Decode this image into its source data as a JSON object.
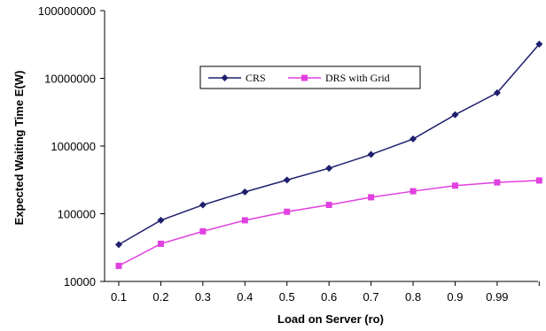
{
  "chart_data": {
    "type": "line",
    "title": "",
    "xlabel": "Load on Server (ro)",
    "ylabel": "Expected Waiting Time E(W)",
    "yscale": "log",
    "ylim": [
      10000,
      100000000
    ],
    "y_ticks": [
      "10000",
      "100000",
      "1000000",
      "10000000",
      "100000000"
    ],
    "categories": [
      "0.1",
      "0.2",
      "0.3",
      "0.4",
      "0.5",
      "0.6",
      "0.7",
      "0.8",
      "0.9",
      "0.99",
      ""
    ],
    "grid": false,
    "legend": "inside-top",
    "series": [
      {
        "name": "CRS",
        "color": "#1f1f6e",
        "marker": "diamond",
        "values": [
          35000,
          80000,
          135000,
          210000,
          315000,
          470000,
          750000,
          1270000,
          2900000,
          6100000,
          32000000
        ]
      },
      {
        "name": "DRS with Grid",
        "color": "#e040e0",
        "marker": "square",
        "values": [
          17000,
          36000,
          55000,
          80000,
          107000,
          135000,
          175000,
          215000,
          260000,
          290000,
          310000
        ]
      }
    ]
  }
}
